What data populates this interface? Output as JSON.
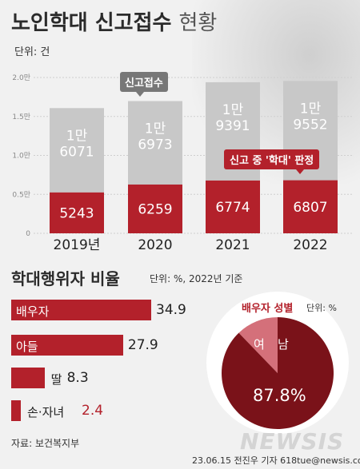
{
  "title": {
    "main": "노인학대 신고접수",
    "light": "현황"
  },
  "unit_top": "단위: 건",
  "callouts": {
    "reports": "신고접수",
    "confirmed": "신고 중 '학대' 판정"
  },
  "chart_data": [
    {
      "type": "bar",
      "categories": [
        "2019년",
        "2020",
        "2021",
        "2022"
      ],
      "series": [
        {
          "name": "신고접수",
          "values": [
            16071,
            16973,
            19391,
            19552
          ],
          "labels": [
            "1만\n6071",
            "1만\n6973",
            "1만\n9391",
            "1만\n9552"
          ],
          "color": "#c8c8c8"
        },
        {
          "name": "신고 중 '학대' 판정",
          "values": [
            5243,
            6259,
            6774,
            6807
          ],
          "labels": [
            "5243",
            "6259",
            "6774",
            "6807"
          ],
          "color": "#b3212b"
        }
      ],
      "yticks": [
        "0",
        "0.5만",
        "1.0만",
        "1.5만",
        "2.0만"
      ],
      "ylim": [
        0,
        20000
      ],
      "grid": true
    },
    {
      "type": "bar",
      "orientation": "horizontal",
      "categories": [
        "배우자",
        "아들",
        "딸",
        "손·자녀"
      ],
      "values": [
        34.9,
        27.9,
        8.3,
        2.4
      ],
      "value_labels": [
        "34.9",
        "27.9",
        "8.3",
        "2.4"
      ],
      "color": "#b3212b"
    },
    {
      "type": "pie",
      "categories": [
        "남",
        "여"
      ],
      "values": [
        87.8,
        12.2
      ],
      "colors": [
        "#7a1219",
        "#d4707a"
      ]
    }
  ],
  "section2": {
    "title": "학대행위자 비율",
    "unit": "단위: %, 2022년 기준"
  },
  "pie": {
    "title": "배우자 성별",
    "unit": "단위: %",
    "female": "여",
    "male": "남",
    "value": "87.8%"
  },
  "source": "자료: 보건복지부",
  "credit": "23.06.15 전진우 기자 618tue@newsis.com",
  "watermark": "NEWSIS",
  "colors": {
    "accent": "#b3212b",
    "bar_gray": "#c8c8c8",
    "pie_dark": "#7a1219",
    "pie_light": "#d4707a"
  }
}
